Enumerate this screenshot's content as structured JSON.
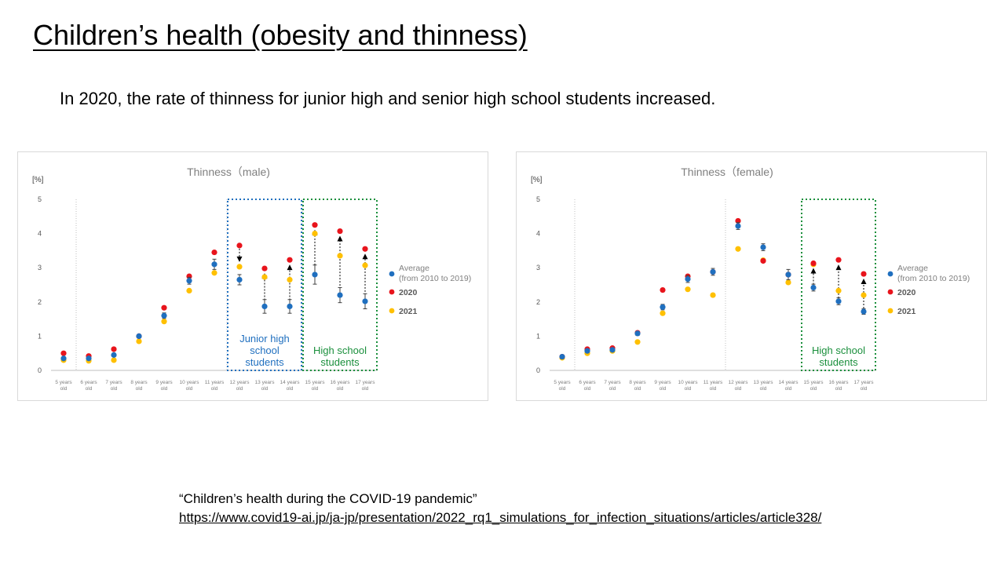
{
  "slide": {
    "title": "Children’s health (obesity and thinness)",
    "subtitle": "In 2020, the rate of thinness for junior high and senior high school students increased.",
    "source_title": "“Children’s health during the COVID-19 pandemic”",
    "source_url": "https://www.covid19-ai.jp/ja-jp/presentation/2022_rq1_simulations_for_infection_situations/articles/article328/"
  },
  "colors": {
    "average": "#1f6fbf",
    "y2020": "#e8141c",
    "y2021": "#ffc000",
    "junior_box": "#1f6fbf",
    "high_box": "#1a8f3c"
  },
  "chart_data": [
    {
      "type": "scatter",
      "title": "Thinness（male)",
      "ylabel": "[%]",
      "ylim": [
        0,
        5
      ],
      "yticks": [
        0,
        1,
        2,
        3,
        4,
        5
      ],
      "categories": [
        "5 years old",
        "6 years old",
        "7 years old",
        "8 years old",
        "9 years old",
        "10 years old",
        "11 years old",
        "12 years old",
        "13 years old",
        "14 years old",
        "15 years old",
        "16 years old",
        "17 years old"
      ],
      "series": [
        {
          "name": "Average (from 2010 to 2019)",
          "key": "average",
          "values": [
            0.35,
            0.35,
            0.45,
            1.0,
            1.6,
            2.62,
            3.1,
            2.65,
            1.87,
            1.87,
            2.8,
            2.2,
            2.02
          ],
          "error": [
            0.05,
            0.05,
            0.05,
            0.05,
            0.08,
            0.1,
            0.15,
            0.15,
            0.2,
            0.2,
            0.28,
            0.22,
            0.22
          ]
        },
        {
          "name": "2020",
          "key": "y2020",
          "values": [
            0.5,
            0.42,
            0.62,
            1.0,
            1.83,
            2.75,
            3.45,
            3.65,
            2.98,
            3.23,
            4.25,
            4.07,
            3.55
          ]
        },
        {
          "name": "2021",
          "key": "y2021",
          "values": [
            0.3,
            0.28,
            0.3,
            0.85,
            1.43,
            2.33,
            2.85,
            3.03,
            2.73,
            2.65,
            4.0,
            3.35,
            3.07
          ]
        }
      ],
      "legend": [
        {
          "key": "average",
          "line1": "Average",
          "line2": "(from 2010 to 2019)"
        },
        {
          "key": "y2020",
          "line1": "2020"
        },
        {
          "key": "y2021",
          "line1": "2021"
        }
      ],
      "legend_position": "right",
      "arrows": [
        {
          "category_index": 7,
          "from": 3.65,
          "to": 3.03
        },
        {
          "category_index": 8,
          "from": 1.87,
          "to": 2.98
        },
        {
          "category_index": 9,
          "from": 1.87,
          "to": 3.23
        },
        {
          "category_index": 10,
          "from": 2.8,
          "to": 4.25
        },
        {
          "category_index": 11,
          "from": 2.2,
          "to": 4.07
        },
        {
          "category_index": 12,
          "from": 2.02,
          "to": 3.55
        }
      ],
      "boxes": [
        {
          "label_lines": [
            "Junior high",
            "school",
            "students"
          ],
          "color_key": "junior_box",
          "start_index": 7,
          "end_index": 9
        },
        {
          "label_lines": [
            "High school",
            "students"
          ],
          "color_key": "high_box",
          "start_index": 10,
          "end_index": 12
        }
      ],
      "dotted_lines_after": [
        0,
        6,
        9
      ]
    },
    {
      "type": "scatter",
      "title": "Thinness（female)",
      "ylabel": "[%]",
      "ylim": [
        0,
        5
      ],
      "yticks": [
        0,
        1,
        2,
        3,
        4,
        5
      ],
      "categories": [
        "5 years old",
        "6 years old",
        "7 years old",
        "8 years old",
        "9 years old",
        "10 years old",
        "11 years old",
        "12 years old",
        "13 years old",
        "14 years old",
        "15 years old",
        "16 years old",
        "17 years old"
      ],
      "series": [
        {
          "name": "Average (from 2010 to 2019)",
          "key": "average",
          "values": [
            0.4,
            0.57,
            0.6,
            1.08,
            1.85,
            2.67,
            2.88,
            4.22,
            3.6,
            2.8,
            2.42,
            2.02,
            1.72
          ],
          "error": [
            0.04,
            0.05,
            0.05,
            0.06,
            0.08,
            0.1,
            0.1,
            0.1,
            0.1,
            0.15,
            0.1,
            0.1,
            0.08
          ]
        },
        {
          "name": "2020",
          "key": "y2020",
          "values": [
            0.4,
            0.62,
            0.65,
            1.1,
            2.35,
            2.75,
            2.88,
            4.37,
            3.2,
            2.8,
            3.13,
            3.23,
            2.82
          ]
        },
        {
          "name": "2021",
          "key": "y2021",
          "values": [
            0.37,
            0.5,
            0.57,
            0.83,
            1.67,
            2.37,
            2.2,
            3.55,
            3.22,
            2.57,
            3.1,
            2.33,
            2.2
          ]
        }
      ],
      "legend": [
        {
          "key": "average",
          "line1": "Average",
          "line2": "(from 2010 to 2019)"
        },
        {
          "key": "y2020",
          "line1": "2020"
        },
        {
          "key": "y2021",
          "line1": "2021"
        }
      ],
      "legend_position": "right",
      "arrows": [
        {
          "category_index": 10,
          "from": 2.42,
          "to": 3.13
        },
        {
          "category_index": 11,
          "from": 2.02,
          "to": 3.23
        },
        {
          "category_index": 12,
          "from": 1.72,
          "to": 2.82
        }
      ],
      "boxes": [
        {
          "label_lines": [
            "High school",
            "students"
          ],
          "color_key": "high_box",
          "start_index": 10,
          "end_index": 12
        }
      ],
      "dotted_lines_after": [
        0,
        6
      ]
    }
  ]
}
